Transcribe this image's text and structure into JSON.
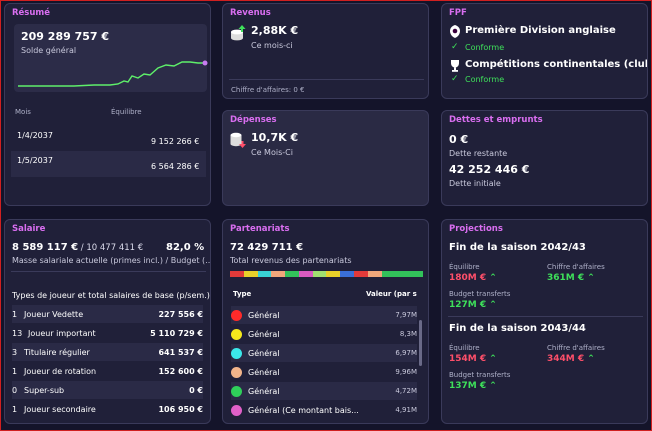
{
  "resume": {
    "title": "Résumé",
    "balance": "209 289 757 €",
    "balance_label": "Solde général",
    "col_month": "Mois",
    "col_balance": "Équilibre",
    "rows": [
      {
        "month": "1/4/2037",
        "value": "9 152 266 €"
      },
      {
        "month": "1/5/2037",
        "value": "6 564 286 €"
      }
    ]
  },
  "revenus": {
    "title": "Revenus",
    "value": "2,88K €",
    "period": "Ce mois-ci",
    "turnover": "Chiffre d'affaires:  0 €"
  },
  "depenses": {
    "title": "Dépenses",
    "value": "10,7K €",
    "period": "Ce Mois-Ci"
  },
  "fpf": {
    "title": "FPF",
    "items": [
      {
        "name": "Première Division anglaise",
        "status": "Conforme"
      },
      {
        "name": "Compétitions continentales (clubs)",
        "status": "Conforme"
      }
    ]
  },
  "dettes": {
    "title": "Dettes et emprunts",
    "remaining": "0 €",
    "remaining_label": "Dette restante",
    "initial": "42 252 446 €",
    "initial_label": "Dette initiale"
  },
  "salaire": {
    "title": "Salaire",
    "current": "8 589 117 €",
    "budget": " / 10 477 411 €",
    "percent": "82,0 %",
    "subtitle": "Masse salariale actuelle (primes incl.) / Budget (...",
    "section": "Types de joueur et total salaires de base (p/sem.) :",
    "rows": [
      {
        "n": "1",
        "type": "Joueur Vedette",
        "value": "227 556 €"
      },
      {
        "n": "13",
        "type": "Joueur important",
        "value": "5 110 729 €"
      },
      {
        "n": "3",
        "type": "Titulaire régulier",
        "value": "641 537 €"
      },
      {
        "n": "1",
        "type": "Joueur de rotation",
        "value": "152 600 €"
      },
      {
        "n": "0",
        "type": "Super-sub",
        "value": "0 €"
      },
      {
        "n": "1",
        "type": "Joueur secondaire",
        "value": "106 950 €"
      }
    ]
  },
  "partenariats": {
    "title": "Partenariats",
    "total": "72 429 711 €",
    "total_label": "Total revenus des partenariats",
    "col_type": "Type",
    "col_value": "Valeur (par s",
    "rows": [
      {
        "color": "#ff2a2a",
        "type": "Général",
        "value": "7,97M"
      },
      {
        "color": "#f5e81c",
        "type": "Général",
        "value": "8,3M"
      },
      {
        "color": "#3be7ea",
        "type": "Général",
        "value": "6,97M"
      },
      {
        "color": "#f2b48a",
        "type": "Général",
        "value": "9,96M"
      },
      {
        "color": "#2fcf5a",
        "type": "Général",
        "value": "4,72M"
      },
      {
        "color": "#e060c8",
        "type": "Général (Ce montant bais...",
        "value": "4,91M"
      }
    ],
    "bar_colors": [
      "#e23a3a",
      "#e8d02a",
      "#39d3d6",
      "#f0a77b",
      "#32c25a",
      "#d85ac0",
      "#a0e070",
      "#e8d02a",
      "#3a6fd8",
      "#e23a3a",
      "#f0a77b",
      "#32c25a",
      "#32c25a",
      "#32c25a"
    ]
  },
  "projections": {
    "title": "Projections",
    "seasons": [
      {
        "name": "Fin de la saison 2042/43",
        "eq_label": "Équilibre",
        "eq": "180M €",
        "ca_label": "Chiffre d'affaires",
        "ca": "361M €",
        "bt_label": "Budget transferts",
        "bt": "127M €"
      },
      {
        "name": "Fin de la saison 2043/44",
        "eq_label": "Équilibre",
        "eq": "154M €",
        "ca_label": "Chiffre d'affaires",
        "ca": "344M €",
        "bt_label": "Budget transferts",
        "bt": "137M €"
      }
    ]
  }
}
